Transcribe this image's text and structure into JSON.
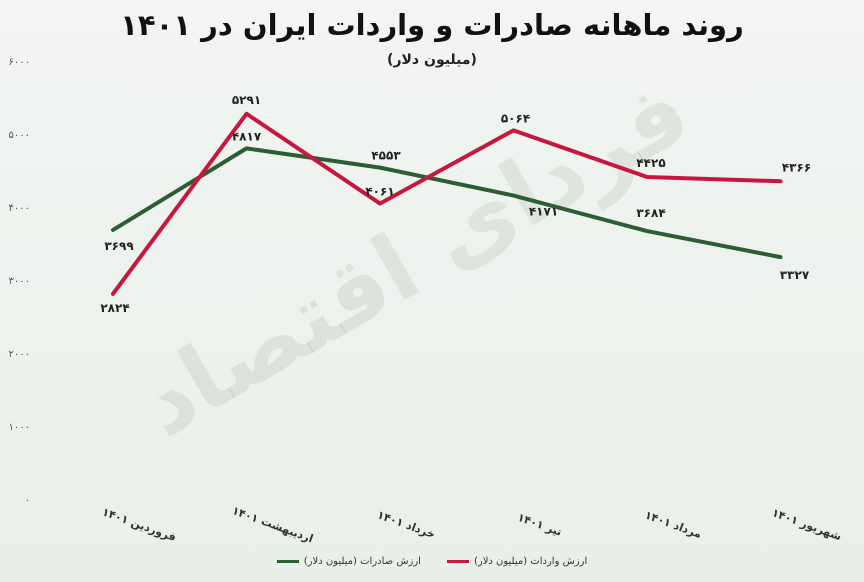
{
  "chart_data": {
    "type": "line",
    "title": "روند ماهانه صادرات و واردات ایران در ۱۴۰۱",
    "subtitle": "(میلیون دلار)",
    "watermark": "فردای اقتصاد",
    "categories": [
      "فروردین ۱۴۰۱",
      "اردیبهشت ۱۴۰۱",
      "خرداد ۱۴۰۱",
      "تیر ۱۴۰۱",
      "مرداد ۱۴۰۱",
      "شهریور ۱۴۰۱"
    ],
    "ylim": [
      0,
      6000
    ],
    "yticks": [
      0,
      1000,
      2000,
      3000,
      4000,
      5000,
      6000
    ],
    "ytick_labels": [
      "۰",
      "۱۰۰۰",
      "۲۰۰۰",
      "۳۰۰۰",
      "۴۰۰۰",
      "۵۰۰۰",
      "۶۰۰۰"
    ],
    "grid": false,
    "legend_position": "bottom",
    "series": [
      {
        "name": "ارزش صادرات (میلیون دلار)",
        "color": "#2d5e33",
        "values": [
          3699,
          4817,
          4553,
          4171,
          3684,
          3327
        ],
        "labels": [
          "۳۶۹۹",
          "۴۸۱۷",
          "۴۵۵۳",
          "۴۱۷۱",
          "۳۶۸۴",
          "۳۳۲۷"
        ]
      },
      {
        "name": "ارزش واردات (میلیون دلار)",
        "color": "#c8173f",
        "values": [
          2824,
          5291,
          4061,
          5064,
          4425,
          4366
        ],
        "labels": [
          "۲۸۲۴",
          "۵۲۹۱",
          "۴۰۶۱",
          "۵۰۶۴",
          "۴۴۲۵",
          "۴۳۶۶"
        ]
      }
    ]
  }
}
